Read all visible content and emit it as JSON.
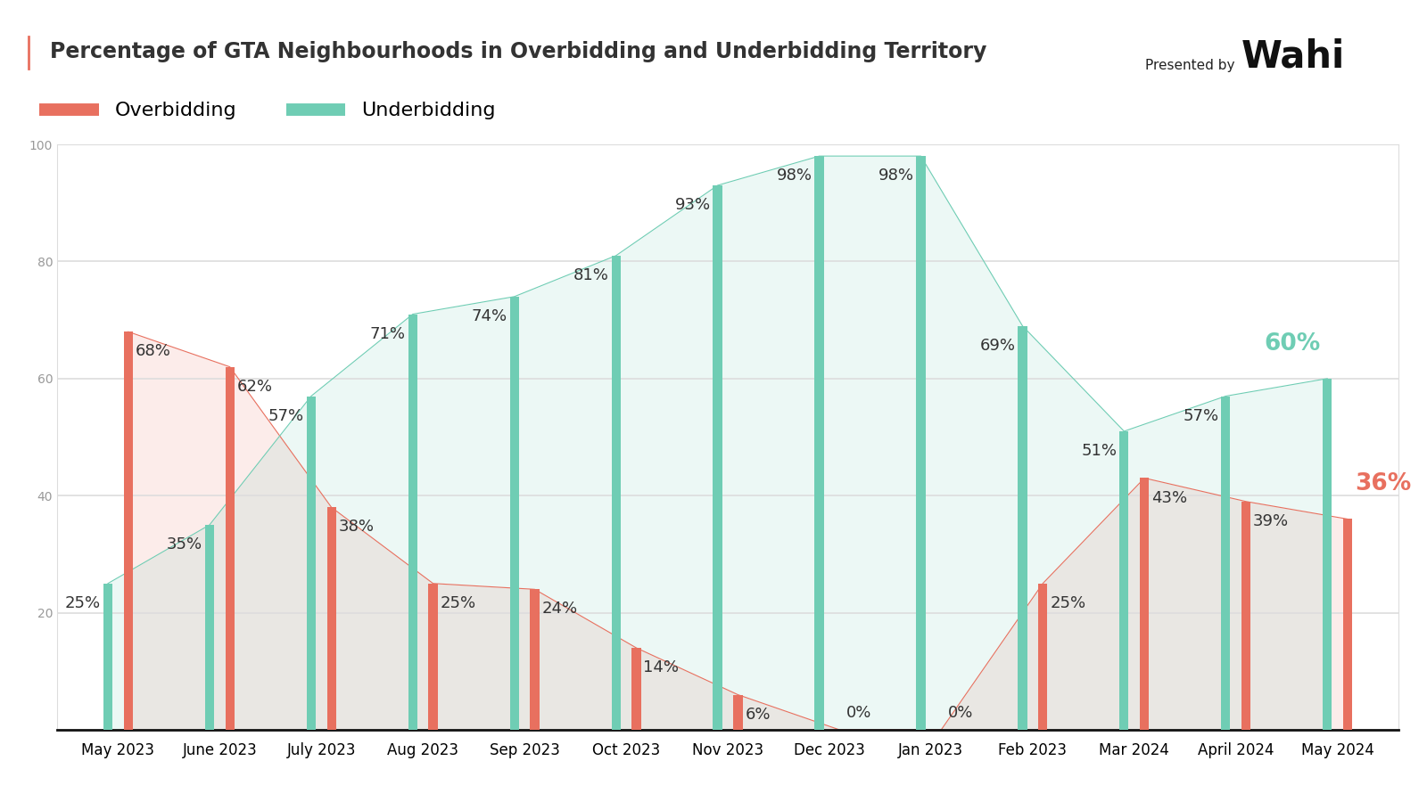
{
  "chart_data": {
    "type": "bar",
    "title": "Percentage of GTA Neighbourhoods in Overbidding and Underbidding Territory",
    "annotations": [
      "Presented by",
      "Wahi"
    ],
    "categories": [
      "May 2023",
      "June 2023",
      "July 2023",
      "Aug 2023",
      "Sep 2023",
      "Oct 2023",
      "Nov 2023",
      "Dec 2023",
      "Jan 2023",
      "Feb 2023",
      "Mar 2024",
      "April 2024",
      "May 2024"
    ],
    "series": [
      {
        "name": "Overbidding",
        "color": "#e8705f",
        "values": [
          68,
          62,
          38,
          25,
          24,
          14,
          6,
          0,
          0,
          25,
          43,
          39,
          36
        ],
        "value_labels": [
          "68%",
          "62%",
          "38%",
          "25%",
          "24%",
          "14%",
          "6%",
          "0%",
          "0%",
          "25%",
          "43%",
          "39%",
          "36%"
        ]
      },
      {
        "name": "Underbidding",
        "color": "#6fcdb4",
        "values": [
          25,
          35,
          57,
          71,
          74,
          81,
          93,
          98,
          98,
          69,
          51,
          57,
          60
        ],
        "value_labels": [
          "25%",
          "35%",
          "57%",
          "71%",
          "74%",
          "81%",
          "93%",
          "98%",
          "98%",
          "69%",
          "51%",
          "57%",
          "60%"
        ]
      }
    ],
    "ylim": [
      0,
      100
    ],
    "yticks": [
      20,
      40,
      60,
      80,
      100
    ],
    "grid": true,
    "legend": "upper left",
    "data_labels": true
  }
}
